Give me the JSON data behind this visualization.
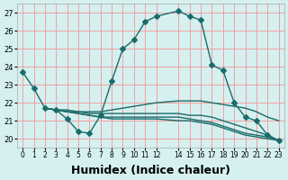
{
  "bg_color": "#d6f0f0",
  "grid_color": "#f0a0a0",
  "line_color": "#1a6b6b",
  "marker_color": "#1a6b6b",
  "xlabel": "Humidex (Indice chaleur)",
  "xlabel_fontsize": 9,
  "xlim": [
    -0.5,
    23.5
  ],
  "ylim": [
    19.5,
    27.5
  ],
  "yticks": [
    20,
    21,
    22,
    23,
    24,
    25,
    26,
    27
  ],
  "xtick_labels": [
    "0",
    "1",
    "2",
    "3",
    "4",
    "5",
    "6",
    "7",
    "8",
    "9",
    "10",
    "11",
    "12",
    "14",
    "15",
    "16",
    "17",
    "18",
    "19",
    "20",
    "21",
    "22",
    "23"
  ],
  "curve1_x": [
    0,
    1,
    2,
    3,
    4,
    5,
    6,
    7,
    8,
    9,
    10,
    11,
    12,
    14,
    15,
    16,
    17,
    18,
    19,
    20,
    21,
    22,
    23
  ],
  "curve1_y": [
    23.7,
    22.8,
    21.7,
    21.6,
    21.1,
    20.4,
    20.3,
    21.3,
    23.2,
    25.0,
    25.5,
    26.5,
    26.8,
    27.1,
    26.8,
    26.6,
    24.1,
    23.8,
    22.0,
    21.2,
    21.0,
    20.2,
    19.9
  ],
  "curve2_x": [
    2,
    3,
    4,
    5,
    6,
    7,
    8,
    9,
    10,
    11,
    12,
    14,
    15,
    16,
    17,
    18,
    19,
    20,
    21,
    22,
    23
  ],
  "curve2_y": [
    21.7,
    21.6,
    21.6,
    21.5,
    21.5,
    21.5,
    21.6,
    21.7,
    21.8,
    21.9,
    22.0,
    22.1,
    22.1,
    22.1,
    22.0,
    21.9,
    21.8,
    21.7,
    21.5,
    21.2,
    21.0
  ],
  "curve3_x": [
    2,
    3,
    4,
    5,
    6,
    7,
    8,
    9,
    10,
    11,
    12,
    14,
    15,
    16,
    17,
    18,
    19,
    20,
    21,
    22,
    23
  ],
  "curve3_y": [
    21.7,
    21.6,
    21.5,
    21.5,
    21.4,
    21.4,
    21.4,
    21.4,
    21.4,
    21.4,
    21.4,
    21.4,
    21.3,
    21.3,
    21.2,
    21.0,
    20.8,
    20.6,
    20.4,
    20.2,
    19.9
  ],
  "curve4_x": [
    2,
    3,
    4,
    5,
    6,
    7,
    8,
    9,
    10,
    11,
    12,
    14,
    15,
    16,
    17,
    18,
    19,
    20,
    21,
    22,
    23
  ],
  "curve4_y": [
    21.7,
    21.6,
    21.5,
    21.4,
    21.3,
    21.2,
    21.2,
    21.2,
    21.2,
    21.2,
    21.2,
    21.2,
    21.1,
    21.0,
    20.9,
    20.7,
    20.5,
    20.3,
    20.2,
    20.1,
    19.9
  ],
  "curve5_x": [
    2,
    3,
    4,
    5,
    6,
    7,
    8,
    9,
    10,
    11,
    12,
    14,
    15,
    16,
    17,
    18,
    19,
    20,
    21,
    22,
    23
  ],
  "curve5_y": [
    21.7,
    21.6,
    21.5,
    21.4,
    21.3,
    21.2,
    21.1,
    21.1,
    21.1,
    21.1,
    21.1,
    21.0,
    21.0,
    20.9,
    20.8,
    20.6,
    20.4,
    20.2,
    20.1,
    20.0,
    19.9
  ]
}
